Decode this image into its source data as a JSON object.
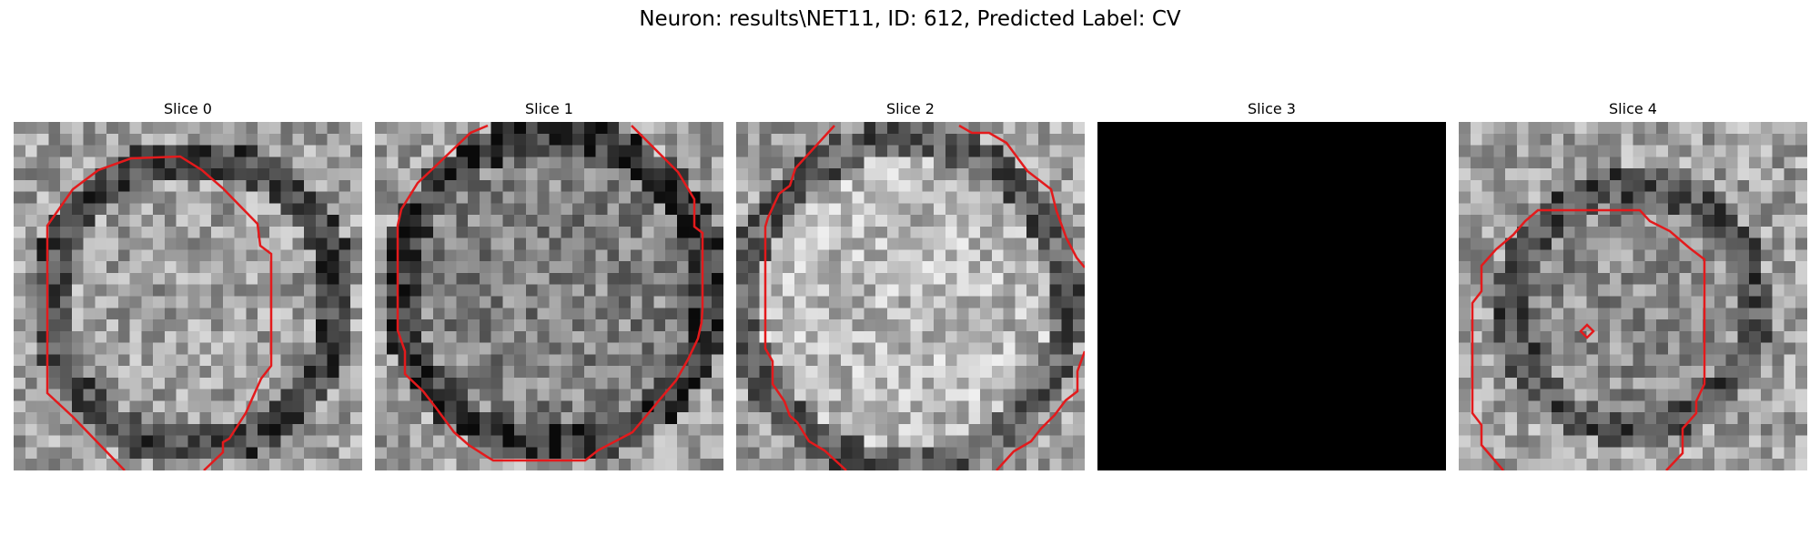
{
  "figure": {
    "title": "Neuron: results\\NET11, ID: 612, Predicted Label: CV",
    "contour_color": "#e31a1c",
    "colormap": "gray"
  },
  "slices": [
    {
      "label": "Slice 0",
      "content": "grayscale neuron patch with red contour"
    },
    {
      "label": "Slice 1",
      "content": "grayscale neuron patch with red contour"
    },
    {
      "label": "Slice 2",
      "content": "grayscale neuron patch with red contour"
    },
    {
      "label": "Slice 3",
      "content": "empty black patch"
    },
    {
      "label": "Slice 4",
      "content": "grayscale neuron patch with red contour and small red diamond"
    }
  ]
}
